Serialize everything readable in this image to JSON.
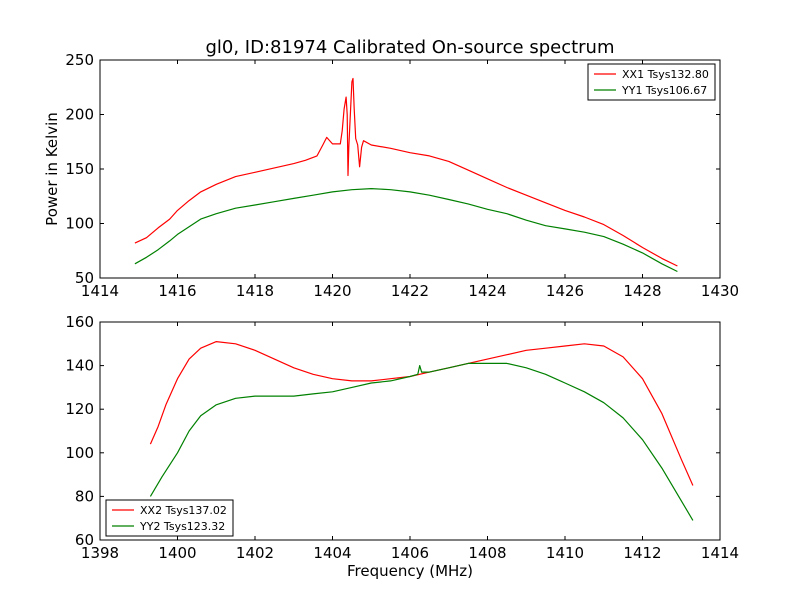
{
  "title": "gl0, ID:81974 Calibrated On-source spectrum",
  "chart_data": [
    {
      "type": "line",
      "title": "gl0, ID:81974 Calibrated On-source spectrum",
      "xlabel": "",
      "ylabel": "Power in Kelvin",
      "xlim": [
        1414,
        1430
      ],
      "ylim": [
        50,
        250
      ],
      "xticks": [
        1414,
        1416,
        1418,
        1420,
        1422,
        1424,
        1426,
        1428,
        1430
      ],
      "yticks": [
        50,
        100,
        150,
        200,
        250
      ],
      "grid": false,
      "legend_position": "top-right",
      "series": [
        {
          "name": "XX1 Tsys132.80",
          "color": "#ff0000",
          "points": [
            [
              1414.9,
              82
            ],
            [
              1415.2,
              87
            ],
            [
              1415.5,
              96
            ],
            [
              1415.8,
              104
            ],
            [
              1416.0,
              112
            ],
            [
              1416.3,
              121
            ],
            [
              1416.6,
              129
            ],
            [
              1417.0,
              136
            ],
            [
              1417.5,
              143
            ],
            [
              1418.0,
              147
            ],
            [
              1418.5,
              151
            ],
            [
              1419.0,
              155
            ],
            [
              1419.3,
              158
            ],
            [
              1419.6,
              162
            ],
            [
              1419.75,
              172
            ],
            [
              1419.85,
              179
            ],
            [
              1420.0,
              173
            ],
            [
              1420.2,
              173
            ],
            [
              1420.25,
              185
            ],
            [
              1420.3,
              205
            ],
            [
              1420.35,
              216
            ],
            [
              1420.38,
              200
            ],
            [
              1420.4,
              144
            ],
            [
              1420.42,
              170
            ],
            [
              1420.5,
              230
            ],
            [
              1420.53,
              233
            ],
            [
              1420.56,
              205
            ],
            [
              1420.6,
              178
            ],
            [
              1420.65,
              172
            ],
            [
              1420.7,
              152
            ],
            [
              1420.75,
              170
            ],
            [
              1420.8,
              176
            ],
            [
              1421.0,
              172
            ],
            [
              1421.5,
              169
            ],
            [
              1422.0,
              165
            ],
            [
              1422.5,
              162
            ],
            [
              1423.0,
              157
            ],
            [
              1423.5,
              149
            ],
            [
              1424.0,
              141
            ],
            [
              1424.5,
              133
            ],
            [
              1425.0,
              126
            ],
            [
              1425.5,
              119
            ],
            [
              1426.0,
              112
            ],
            [
              1426.5,
              106
            ],
            [
              1427.0,
              99
            ],
            [
              1427.5,
              89
            ],
            [
              1428.0,
              78
            ],
            [
              1428.5,
              68
            ],
            [
              1428.9,
              61
            ]
          ]
        },
        {
          "name": "YY1 Tsys106.67",
          "color": "#008000",
          "points": [
            [
              1414.9,
              63
            ],
            [
              1415.2,
              69
            ],
            [
              1415.5,
              76
            ],
            [
              1415.8,
              84
            ],
            [
              1416.0,
              90
            ],
            [
              1416.3,
              97
            ],
            [
              1416.6,
              104
            ],
            [
              1417.0,
              109
            ],
            [
              1417.5,
              114
            ],
            [
              1418.0,
              117
            ],
            [
              1418.5,
              120
            ],
            [
              1419.0,
              123
            ],
            [
              1419.5,
              126
            ],
            [
              1420.0,
              129
            ],
            [
              1420.5,
              131
            ],
            [
              1421.0,
              132
            ],
            [
              1421.5,
              131
            ],
            [
              1422.0,
              129
            ],
            [
              1422.5,
              126
            ],
            [
              1423.0,
              122
            ],
            [
              1423.5,
              118
            ],
            [
              1424.0,
              113
            ],
            [
              1424.5,
              109
            ],
            [
              1425.0,
              103
            ],
            [
              1425.5,
              98
            ],
            [
              1426.0,
              95
            ],
            [
              1426.5,
              92
            ],
            [
              1427.0,
              88
            ],
            [
              1427.5,
              81
            ],
            [
              1428.0,
              73
            ],
            [
              1428.5,
              63
            ],
            [
              1428.9,
              56
            ]
          ]
        }
      ]
    },
    {
      "type": "line",
      "title": "",
      "xlabel": "Frequency (MHz)",
      "ylabel": "",
      "xlim": [
        1398,
        1414
      ],
      "ylim": [
        60,
        160
      ],
      "xticks": [
        1398,
        1400,
        1402,
        1404,
        1406,
        1408,
        1410,
        1412,
        1414
      ],
      "yticks": [
        60,
        80,
        100,
        120,
        140,
        160
      ],
      "grid": false,
      "legend_position": "bottom-left",
      "series": [
        {
          "name": "XX2 Tsys137.02",
          "color": "#ff0000",
          "points": [
            [
              1399.3,
              104
            ],
            [
              1399.5,
              112
            ],
            [
              1399.7,
              122
            ],
            [
              1400.0,
              134
            ],
            [
              1400.3,
              143
            ],
            [
              1400.6,
              148
            ],
            [
              1401.0,
              151
            ],
            [
              1401.5,
              150
            ],
            [
              1402.0,
              147
            ],
            [
              1402.5,
              143
            ],
            [
              1403.0,
              139
            ],
            [
              1403.5,
              136
            ],
            [
              1404.0,
              134
            ],
            [
              1404.5,
              133
            ],
            [
              1405.0,
              133
            ],
            [
              1405.5,
              134
            ],
            [
              1406.0,
              135
            ],
            [
              1406.5,
              137
            ],
            [
              1407.0,
              139
            ],
            [
              1407.5,
              141
            ],
            [
              1408.0,
              143
            ],
            [
              1408.5,
              145
            ],
            [
              1409.0,
              147
            ],
            [
              1409.5,
              148
            ],
            [
              1410.0,
              149
            ],
            [
              1410.5,
              150
            ],
            [
              1411.0,
              149
            ],
            [
              1411.5,
              144
            ],
            [
              1412.0,
              134
            ],
            [
              1412.5,
              118
            ],
            [
              1413.0,
              97
            ],
            [
              1413.3,
              85
            ]
          ]
        },
        {
          "name": "YY2 Tsys123.32",
          "color": "#008000",
          "points": [
            [
              1399.3,
              80
            ],
            [
              1399.6,
              89
            ],
            [
              1400.0,
              100
            ],
            [
              1400.3,
              110
            ],
            [
              1400.6,
              117
            ],
            [
              1401.0,
              122
            ],
            [
              1401.5,
              125
            ],
            [
              1402.0,
              126
            ],
            [
              1402.5,
              126
            ],
            [
              1403.0,
              126
            ],
            [
              1403.5,
              127
            ],
            [
              1404.0,
              128
            ],
            [
              1404.5,
              130
            ],
            [
              1405.0,
              132
            ],
            [
              1405.5,
              133
            ],
            [
              1406.0,
              135
            ],
            [
              1406.2,
              136
            ],
            [
              1406.25,
              140
            ],
            [
              1406.3,
              137
            ],
            [
              1406.5,
              137
            ],
            [
              1407.0,
              139
            ],
            [
              1407.5,
              141
            ],
            [
              1408.0,
              141
            ],
            [
              1408.5,
              141
            ],
            [
              1409.0,
              139
            ],
            [
              1409.5,
              136
            ],
            [
              1410.0,
              132
            ],
            [
              1410.5,
              128
            ],
            [
              1411.0,
              123
            ],
            [
              1411.5,
              116
            ],
            [
              1412.0,
              106
            ],
            [
              1412.5,
              93
            ],
            [
              1413.0,
              78
            ],
            [
              1413.3,
              69
            ]
          ]
        }
      ]
    }
  ]
}
